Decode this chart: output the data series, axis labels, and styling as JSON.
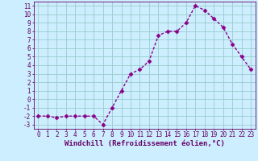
{
  "x": [
    0,
    1,
    2,
    3,
    4,
    5,
    6,
    7,
    8,
    9,
    10,
    11,
    12,
    13,
    14,
    15,
    16,
    17,
    18,
    19,
    20,
    21,
    22,
    23
  ],
  "y": [
    -2,
    -2,
    -2.2,
    -2,
    -2,
    -2,
    -2,
    -3,
    -1,
    1,
    3,
    3.5,
    4.5,
    7.5,
    8,
    8,
    9,
    11,
    10.5,
    9.5,
    8.5,
    6.5,
    5,
    3.5
  ],
  "line_color": "#8b008b",
  "marker": "D",
  "marker_size": 2.5,
  "background_color": "#cceeff",
  "grid_color": "#99cccc",
  "xlabel": "Windchill (Refroidissement éolien,°C)",
  "xlim": [
    -0.5,
    23.5
  ],
  "ylim": [
    -3.5,
    11.5
  ],
  "xticks": [
    0,
    1,
    2,
    3,
    4,
    5,
    6,
    7,
    8,
    9,
    10,
    11,
    12,
    13,
    14,
    15,
    16,
    17,
    18,
    19,
    20,
    21,
    22,
    23
  ],
  "yticks": [
    -3,
    -2,
    -1,
    0,
    1,
    2,
    3,
    4,
    5,
    6,
    7,
    8,
    9,
    10,
    11
  ],
  "axis_color": "#660066",
  "label_fontsize": 6.5,
  "tick_fontsize": 5.5,
  "line_width": 1.0
}
